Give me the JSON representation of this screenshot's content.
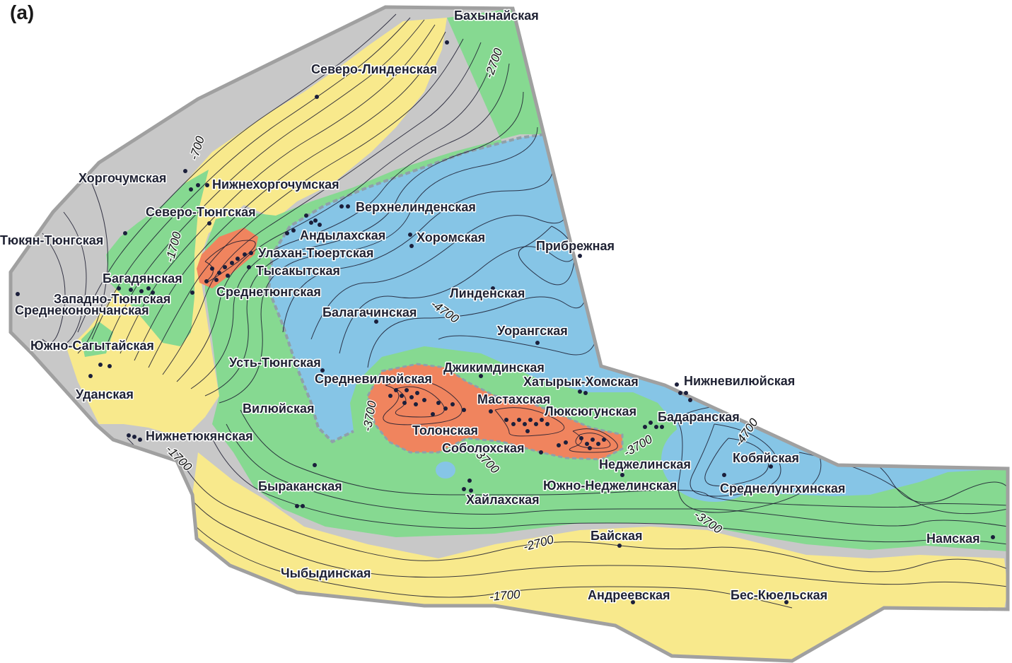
{
  "panel_label": "(a)",
  "colors": {
    "grey": "#c8c8c8",
    "yellow": "#f8e98c",
    "green": "#86d991",
    "blue": "#86c5e6",
    "orange": "#f0845e",
    "boundary": "#a0a0a0",
    "zone_edge": "#8fa0aa"
  },
  "contour_labels": {
    "c1": "-2700",
    "c2": "-700",
    "c3": "-1700",
    "c4": "-4700",
    "c5": "-3700",
    "c6": "-1700",
    "c7": "-3700",
    "c8": "-3700",
    "c9": "-4700",
    "c10": "-3700",
    "c11": "-2700",
    "c12": "-1700"
  },
  "places": {
    "bakhynaiskaya": "Бахынайская",
    "severo_lindenskaya": "Северо-Линденская",
    "khorgochumskaya": "Хоргочумская",
    "nizhnekhorgochumskaya": "Нижнехоргочумская",
    "severo_tyungskaya": "Северо-Тюнгская",
    "verkhnelindenskaya": "Верхнелинденская",
    "tyukyan_tyungskaya": "Тюкян-Тюнгская",
    "andylakhskaya": "Андылахская",
    "khoromskaya": "Хоромская",
    "ulakhan_tyuertskaya": "Улахан-Тюертская",
    "pribrezhnaya": "Прибрежная",
    "tysakytskaya": "Тысакытская",
    "bagadyanskaya": "Багадянская",
    "srednetyungskaya": "Среднетюнгская",
    "zapadno_tyungskaya": "Западно-Тюнгская",
    "lindenskaya": "Линденская",
    "srednekononchanskaya": "Среднеконончанская",
    "balagachinskaya": "Балагачинская",
    "uorangskaya": "Уорангская",
    "yuzhno_sagytaiskaya": "Южно-Сагытайская",
    "ust_tyungskaya": "Усть-Тюнгская",
    "dzhikimdinskaya": "Джикимдинская",
    "srednevilyuiskaya": "Средневилюйская",
    "khatyryk_khomskaya": "Хатырык-Хомская",
    "nizhnevilyuiskaya": "Нижневилюйская",
    "udanskaya": "Уданская",
    "mastakhskaya": "Мастахская",
    "vilyuiskaya": "Вилюйская",
    "lyuksyugunskaya": "Люксюгунская",
    "badaranskaya": "Бадаранская",
    "tolonskaya": "Толонская",
    "nizhnetyukyanskaya": "Нижнетюкянская",
    "sobolokhskaya": "Соболохская",
    "kobyaiskaya": "Кобяйская",
    "nedzhelinskaya": "Неджелинская",
    "byrakanskaya": "Быраканская",
    "yuzhno_nedzhelinskaya": "Южно-Неджелинская",
    "srednelungkhinskaya": "Среднелунгхинская",
    "khailakhskaya": "Хайлахская",
    "baiskaya": "Байская",
    "namskaya": "Намская",
    "chybydinskaya": "Чыбыдинская",
    "andreevskaya": "Андреевская",
    "bes_kyuelskaya": "Бес-Кюельская"
  }
}
